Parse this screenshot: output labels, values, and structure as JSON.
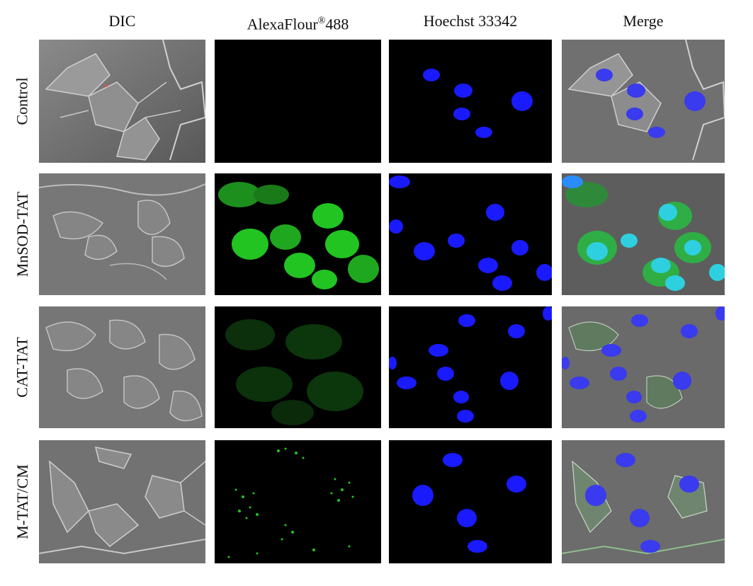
{
  "columns": {
    "dic": "DIC",
    "alexa_name": "AlexaFlour",
    "alexa_sup": "®",
    "alexa_num": "488",
    "hoechst": "Hoechst 33342",
    "merge": "Merge"
  },
  "rows": {
    "control": "Control",
    "mnsod_tat": "MnSOD-TAT",
    "cat_tat": "CAT-TAT",
    "m_tat_cm": "M-TAT/CM"
  },
  "colors": {
    "nucleus_blue": "#1a1aff",
    "fluor_green": "#22c422",
    "dic_gray": "#6e6e6e",
    "background_black": "#000000"
  }
}
